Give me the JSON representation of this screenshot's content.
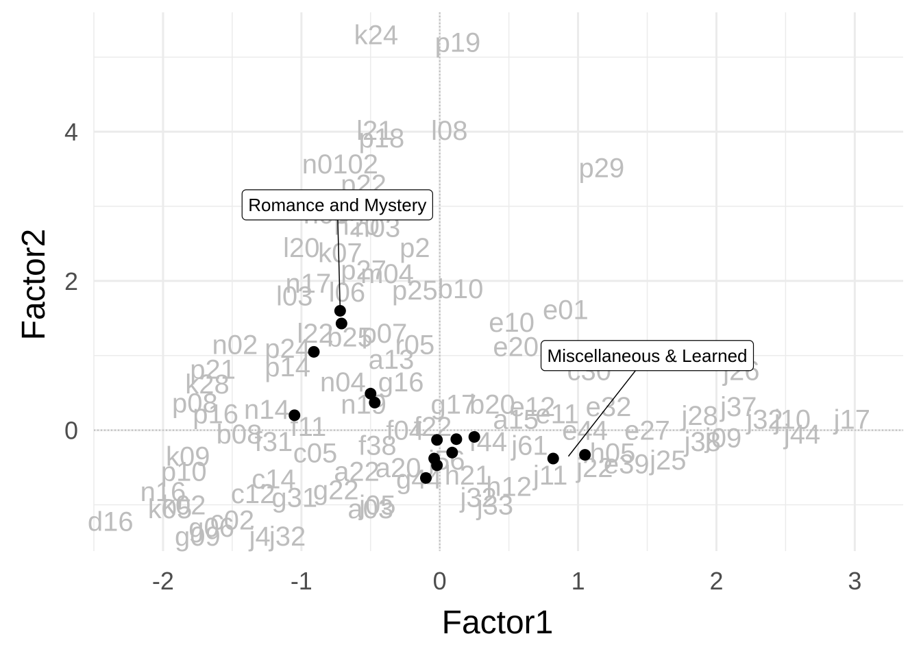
{
  "chart_data": {
    "type": "scatter",
    "xlabel": "Factor1",
    "ylabel": "Factor2",
    "xlim": [
      -2.5,
      3.35
    ],
    "ylim": [
      -1.62,
      5.6
    ],
    "x_ticks": [
      -2,
      -1,
      0,
      1,
      2,
      3
    ],
    "y_ticks": [
      0,
      2,
      4
    ],
    "grid": true,
    "zero_reference_lines": true,
    "colors": {
      "background_labels": "#bdbdbd",
      "highlight_points": "#000000",
      "grid": "#ebebeb"
    },
    "background_labels": [
      {
        "label": "k24",
        "x": -0.46,
        "y": 5.3
      },
      {
        "label": "p19",
        "x": 0.13,
        "y": 5.2
      },
      {
        "label": "l08",
        "x": 0.07,
        "y": 4.02
      },
      {
        "label": "l21",
        "x": -0.47,
        "y": 4.02
      },
      {
        "label": "p18",
        "x": -0.42,
        "y": 3.92
      },
      {
        "label": "p29",
        "x": 1.17,
        "y": 3.52
      },
      {
        "label": "n0102",
        "x": -0.72,
        "y": 3.57
      },
      {
        "label": "p22",
        "x": -0.55,
        "y": 3.3
      },
      {
        "label": "n03",
        "x": -0.82,
        "y": 2.9
      },
      {
        "label": "n20",
        "x": -0.6,
        "y": 2.75
      },
      {
        "label": "n03",
        "x": -0.45,
        "y": 2.72
      },
      {
        "label": "l20",
        "x": -1.0,
        "y": 2.45
      },
      {
        "label": "k07",
        "x": -0.72,
        "y": 2.38
      },
      {
        "label": "p2",
        "x": -0.18,
        "y": 2.45
      },
      {
        "label": "p27",
        "x": -0.55,
        "y": 2.15
      },
      {
        "label": "m04",
        "x": -0.38,
        "y": 2.1
      },
      {
        "label": "n17",
        "x": -0.95,
        "y": 1.97
      },
      {
        "label": "l03",
        "x": -1.05,
        "y": 1.8
      },
      {
        "label": "l06",
        "x": -0.67,
        "y": 1.85
      },
      {
        "label": "p25",
        "x": -0.18,
        "y": 1.88
      },
      {
        "label": "b10",
        "x": 0.15,
        "y": 1.9
      },
      {
        "label": "e10",
        "x": 0.52,
        "y": 1.45
      },
      {
        "label": "e01",
        "x": 0.91,
        "y": 1.62
      },
      {
        "label": "e20",
        "x": 0.55,
        "y": 1.12
      },
      {
        "label": "l22",
        "x": -0.9,
        "y": 1.3
      },
      {
        "label": "b25",
        "x": -0.65,
        "y": 1.25
      },
      {
        "label": "n02",
        "x": -1.48,
        "y": 1.15
      },
      {
        "label": "p24",
        "x": -1.1,
        "y": 1.1
      },
      {
        "label": "p07",
        "x": -0.4,
        "y": 1.3
      },
      {
        "label": "r05",
        "x": -0.18,
        "y": 1.15
      },
      {
        "label": "a13",
        "x": -0.35,
        "y": 0.95
      },
      {
        "label": "p21",
        "x": -1.64,
        "y": 0.82
      },
      {
        "label": "p14",
        "x": -1.1,
        "y": 0.85
      },
      {
        "label": "k28",
        "x": -1.68,
        "y": 0.62
      },
      {
        "label": "n04",
        "x": -0.7,
        "y": 0.65
      },
      {
        "label": "g16",
        "x": -0.28,
        "y": 0.65
      },
      {
        "label": "p08",
        "x": -1.77,
        "y": 0.37
      },
      {
        "label": "p16",
        "x": -1.62,
        "y": 0.22
      },
      {
        "label": "n14",
        "x": -1.25,
        "y": 0.28
      },
      {
        "label": "n19",
        "x": -0.55,
        "y": 0.35
      },
      {
        "label": "b08",
        "x": -1.45,
        "y": -0.05
      },
      {
        "label": "g17",
        "x": 0.1,
        "y": 0.35
      },
      {
        "label": "b20",
        "x": 0.38,
        "y": 0.35
      },
      {
        "label": "e12",
        "x": 0.67,
        "y": 0.32
      },
      {
        "label": "e11",
        "x": 0.85,
        "y": 0.22
      },
      {
        "label": "c30",
        "x": 1.08,
        "y": 0.8
      },
      {
        "label": "e32",
        "x": 1.22,
        "y": 0.32
      },
      {
        "label": "j26",
        "x": 2.18,
        "y": 0.8
      },
      {
        "label": "j37",
        "x": 2.16,
        "y": 0.32
      },
      {
        "label": "j28",
        "x": 1.88,
        "y": 0.2
      },
      {
        "label": "j32",
        "x": 2.35,
        "y": 0.15
      },
      {
        "label": "j10",
        "x": 2.55,
        "y": 0.15
      },
      {
        "label": "j17",
        "x": 2.98,
        "y": 0.15
      },
      {
        "label": "j44",
        "x": 2.62,
        "y": -0.05
      },
      {
        "label": "e44",
        "x": 1.05,
        "y": 0.0
      },
      {
        "label": "a15",
        "x": 0.55,
        "y": 0.15
      },
      {
        "label": "k09",
        "x": -1.82,
        "y": -0.35
      },
      {
        "label": "p10",
        "x": -1.85,
        "y": -0.55
      },
      {
        "label": "n16",
        "x": -2.0,
        "y": -0.82
      },
      {
        "label": "k02",
        "x": -1.85,
        "y": -1.0
      },
      {
        "label": "k05",
        "x": -1.95,
        "y": -1.05
      },
      {
        "label": "d16",
        "x": -2.38,
        "y": -1.22
      },
      {
        "label": "g06",
        "x": -1.65,
        "y": -1.3
      },
      {
        "label": "g09",
        "x": -1.75,
        "y": -1.42
      },
      {
        "label": "j4",
        "x": -1.3,
        "y": -1.42
      },
      {
        "label": "j32",
        "x": -1.1,
        "y": -1.42
      },
      {
        "label": "j32",
        "x": 0.28,
        "y": -0.9
      },
      {
        "label": "j33",
        "x": 0.4,
        "y": -1.0
      },
      {
        "label": "a03",
        "x": -0.5,
        "y": -1.05
      },
      {
        "label": "j05",
        "x": -0.45,
        "y": -1.0
      },
      {
        "label": "e39",
        "x": 1.35,
        "y": -0.45
      },
      {
        "label": "j25",
        "x": 1.65,
        "y": -0.4
      },
      {
        "label": "j38",
        "x": 1.9,
        "y": -0.15
      },
      {
        "label": "j09",
        "x": 2.05,
        "y": -0.1
      },
      {
        "label": "j11",
        "x": 0.8,
        "y": -0.6
      },
      {
        "label": "j22",
        "x": 1.12,
        "y": -0.5
      },
      {
        "label": "a20",
        "x": -0.3,
        "y": -0.5
      },
      {
        "label": "a22",
        "x": -0.6,
        "y": -0.55
      },
      {
        "label": "c05",
        "x": -0.9,
        "y": -0.3
      },
      {
        "label": "c14",
        "x": -1.2,
        "y": -0.65
      },
      {
        "label": "g44",
        "x": -0.15,
        "y": -0.65
      },
      {
        "label": "j56",
        "x": 0.05,
        "y": -0.4
      },
      {
        "label": "j61",
        "x": 0.65,
        "y": -0.2
      },
      {
        "label": "f22",
        "x": -0.05,
        "y": 0.05
      },
      {
        "label": "f04",
        "x": -0.25,
        "y": 0.0
      },
      {
        "label": "f38",
        "x": -0.45,
        "y": -0.2
      },
      {
        "label": "g22",
        "x": -0.75,
        "y": -0.8
      },
      {
        "label": "g31",
        "x": -1.05,
        "y": -0.9
      },
      {
        "label": "c12",
        "x": -1.35,
        "y": -0.85
      },
      {
        "label": "c02",
        "x": -1.5,
        "y": -1.2
      },
      {
        "label": "h12",
        "x": 0.5,
        "y": -0.75
      },
      {
        "label": "h21",
        "x": 0.2,
        "y": -0.6
      },
      {
        "label": "h05",
        "x": 1.25,
        "y": -0.3
      },
      {
        "label": "e27",
        "x": 1.5,
        "y": 0.0
      },
      {
        "label": "f44",
        "x": 0.35,
        "y": -0.15
      },
      {
        "label": "f11",
        "x": -0.95,
        "y": 0.05
      },
      {
        "label": "f31",
        "x": -1.2,
        "y": -0.15
      }
    ],
    "highlight_points": [
      {
        "x": -0.72,
        "y": 1.6
      },
      {
        "x": -0.71,
        "y": 1.43
      },
      {
        "x": -0.91,
        "y": 1.05
      },
      {
        "x": -0.5,
        "y": 0.49
      },
      {
        "x": -0.47,
        "y": 0.37
      },
      {
        "x": -1.05,
        "y": 0.2
      },
      {
        "x": 0.25,
        "y": -0.09
      },
      {
        "x": 0.12,
        "y": -0.12
      },
      {
        "x": -0.02,
        "y": -0.13
      },
      {
        "x": 0.09,
        "y": -0.3
      },
      {
        "x": -0.04,
        "y": -0.38
      },
      {
        "x": -0.02,
        "y": -0.47
      },
      {
        "x": -0.1,
        "y": -0.64
      },
      {
        "x": 0.82,
        "y": -0.38
      },
      {
        "x": 1.05,
        "y": -0.33
      }
    ],
    "annotations": [
      {
        "text": "Romance and Mystery",
        "x": -0.74,
        "y": 3.02,
        "target_x": -0.72,
        "target_y": 1.63
      },
      {
        "text": "Miscellaneous & Learned",
        "x": 1.5,
        "y": 1.0,
        "target_x": 0.93,
        "target_y": -0.35
      }
    ]
  }
}
